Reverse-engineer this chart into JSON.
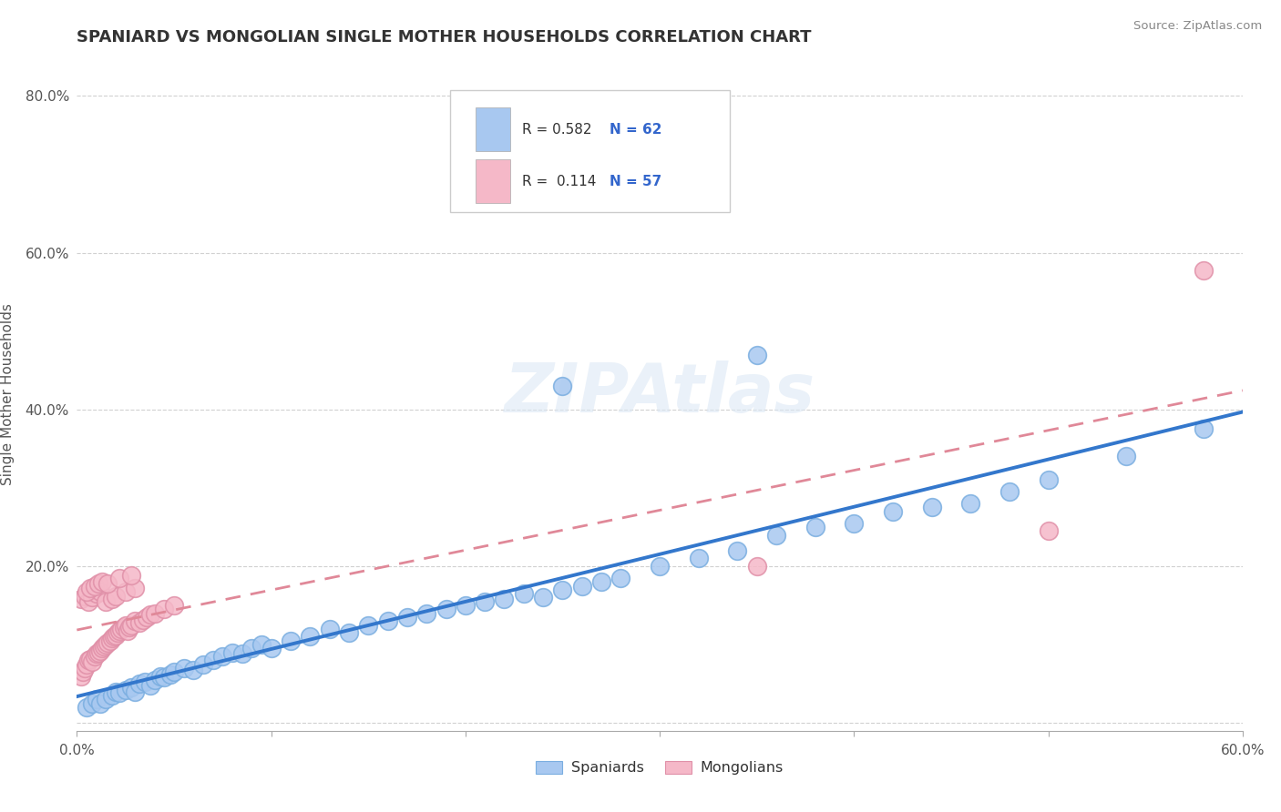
{
  "title": "SPANIARD VS MONGOLIAN SINGLE MOTHER HOUSEHOLDS CORRELATION CHART",
  "source": "Source: ZipAtlas.com",
  "ylabel": "Single Mother Households",
  "xmin": 0.0,
  "xmax": 0.6,
  "ymin": -0.01,
  "ymax": 0.85,
  "yticks": [
    0.0,
    0.2,
    0.4,
    0.6,
    0.8
  ],
  "ytick_labels": [
    "",
    "20.0%",
    "40.0%",
    "60.0%",
    "80.0%"
  ],
  "spaniards_color": "#a8c8f0",
  "spaniards_edge": "#7aaee0",
  "mongolians_color": "#f5b8c8",
  "mongolians_edge": "#e090a8",
  "line_blue": "#3377cc",
  "line_pink": "#e08898",
  "watermark": "ZIPAtlas",
  "background_color": "#ffffff",
  "grid_color": "#cccccc",
  "legend_r1_text": "R = 0.582",
  "legend_n1_text": "N = 62",
  "legend_r2_text": "R =  0.114",
  "legend_n2_text": "N = 57",
  "spaniards_x": [
    0.005,
    0.008,
    0.01,
    0.012,
    0.015,
    0.018,
    0.02,
    0.022,
    0.025,
    0.028,
    0.03,
    0.032,
    0.035,
    0.038,
    0.04,
    0.043,
    0.045,
    0.048,
    0.05,
    0.055,
    0.06,
    0.065,
    0.07,
    0.075,
    0.08,
    0.085,
    0.09,
    0.095,
    0.1,
    0.11,
    0.12,
    0.13,
    0.14,
    0.15,
    0.16,
    0.17,
    0.18,
    0.19,
    0.2,
    0.21,
    0.22,
    0.23,
    0.24,
    0.25,
    0.26,
    0.27,
    0.28,
    0.3,
    0.32,
    0.34,
    0.36,
    0.38,
    0.4,
    0.42,
    0.44,
    0.46,
    0.48,
    0.5,
    0.54,
    0.58,
    0.25,
    0.35
  ],
  "spaniards_y": [
    0.02,
    0.025,
    0.03,
    0.025,
    0.03,
    0.035,
    0.04,
    0.038,
    0.042,
    0.045,
    0.04,
    0.05,
    0.052,
    0.048,
    0.055,
    0.06,
    0.058,
    0.062,
    0.065,
    0.07,
    0.068,
    0.075,
    0.08,
    0.085,
    0.09,
    0.088,
    0.095,
    0.1,
    0.095,
    0.105,
    0.11,
    0.12,
    0.115,
    0.125,
    0.13,
    0.135,
    0.14,
    0.145,
    0.15,
    0.155,
    0.158,
    0.165,
    0.16,
    0.17,
    0.175,
    0.18,
    0.185,
    0.2,
    0.21,
    0.22,
    0.24,
    0.25,
    0.255,
    0.27,
    0.275,
    0.28,
    0.295,
    0.31,
    0.34,
    0.375,
    0.43,
    0.47
  ],
  "mongolians_x": [
    0.002,
    0.003,
    0.004,
    0.005,
    0.006,
    0.007,
    0.008,
    0.009,
    0.01,
    0.011,
    0.012,
    0.013,
    0.014,
    0.015,
    0.016,
    0.017,
    0.018,
    0.019,
    0.02,
    0.021,
    0.022,
    0.023,
    0.024,
    0.025,
    0.026,
    0.027,
    0.028,
    0.03,
    0.032,
    0.034,
    0.036,
    0.038,
    0.04,
    0.045,
    0.05,
    0.002,
    0.004,
    0.006,
    0.008,
    0.01,
    0.012,
    0.015,
    0.018,
    0.02,
    0.025,
    0.03,
    0.005,
    0.007,
    0.009,
    0.011,
    0.013,
    0.016,
    0.022,
    0.028,
    0.35,
    0.5,
    0.58
  ],
  "mongolians_y": [
    0.06,
    0.065,
    0.07,
    0.075,
    0.08,
    0.082,
    0.078,
    0.085,
    0.088,
    0.09,
    0.092,
    0.095,
    0.098,
    0.1,
    0.102,
    0.105,
    0.108,
    0.11,
    0.112,
    0.115,
    0.118,
    0.12,
    0.122,
    0.125,
    0.118,
    0.122,
    0.125,
    0.13,
    0.128,
    0.132,
    0.135,
    0.138,
    0.14,
    0.145,
    0.15,
    0.158,
    0.162,
    0.155,
    0.16,
    0.165,
    0.168,
    0.155,
    0.158,
    0.162,
    0.168,
    0.172,
    0.168,
    0.172,
    0.175,
    0.178,
    0.18,
    0.178,
    0.185,
    0.188,
    0.2,
    0.245,
    0.578
  ]
}
